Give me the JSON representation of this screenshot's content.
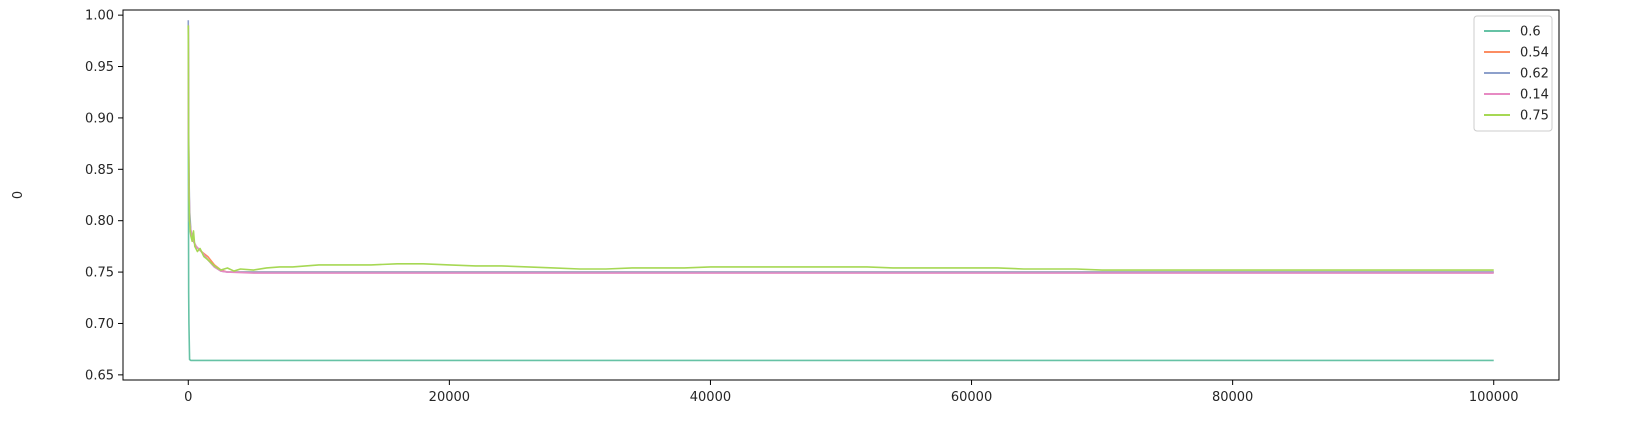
{
  "chart_data": {
    "type": "line",
    "title": "",
    "xlabel": "",
    "ylabel": "0",
    "xlim": [
      -5000,
      105000
    ],
    "ylim": [
      0.645,
      1.005
    ],
    "xticks": [
      0,
      20000,
      40000,
      60000,
      80000,
      100000
    ],
    "xtick_labels": [
      "0",
      "20000",
      "40000",
      "60000",
      "80000",
      "100000"
    ],
    "yticks": [
      0.65,
      0.7,
      0.75,
      0.8,
      0.85,
      0.9,
      0.95,
      1.0
    ],
    "ytick_labels": [
      "0.65",
      "0.70",
      "0.75",
      "0.80",
      "0.85",
      "0.90",
      "0.95",
      "1.00"
    ],
    "grid": false,
    "legend": "top-right",
    "series": [
      {
        "name": "0.6",
        "color": "#66c2a5",
        "x": [
          0,
          5,
          10,
          20,
          30,
          50,
          100,
          200,
          100000
        ],
        "y": [
          0.99,
          0.94,
          0.86,
          0.79,
          0.73,
          0.7,
          0.665,
          0.664,
          0.664
        ]
      },
      {
        "name": "0.54",
        "color": "#fc8d62",
        "x": [
          0,
          20,
          50,
          100,
          200,
          400,
          600,
          1000,
          1500,
          2000,
          2500,
          3000,
          5000,
          10000,
          20000,
          40000,
          60000,
          80000,
          100000
        ],
        "y": [
          0.99,
          0.9,
          0.84,
          0.8,
          0.79,
          0.78,
          0.775,
          0.77,
          0.765,
          0.757,
          0.752,
          0.75,
          0.75,
          0.75,
          0.75,
          0.75,
          0.75,
          0.75,
          0.75
        ]
      },
      {
        "name": "0.62",
        "color": "#8da0cb",
        "x": [
          0,
          20,
          50,
          100,
          200,
          400,
          600,
          1000,
          1500,
          2000,
          2500,
          3000,
          5000,
          10000,
          20000,
          40000,
          60000,
          80000,
          100000
        ],
        "y": [
          0.995,
          0.91,
          0.85,
          0.81,
          0.79,
          0.78,
          0.775,
          0.77,
          0.762,
          0.755,
          0.751,
          0.75,
          0.75,
          0.75,
          0.75,
          0.75,
          0.75,
          0.75,
          0.75
        ]
      },
      {
        "name": "0.14",
        "color": "#e78ac3",
        "x": [
          0,
          20,
          50,
          100,
          200,
          400,
          600,
          1000,
          1500,
          2000,
          2500,
          3000,
          5000,
          10000,
          20000,
          40000,
          60000,
          80000,
          100000
        ],
        "y": [
          0.99,
          0.9,
          0.84,
          0.8,
          0.79,
          0.78,
          0.775,
          0.77,
          0.762,
          0.755,
          0.751,
          0.75,
          0.749,
          0.749,
          0.749,
          0.749,
          0.749,
          0.749,
          0.749
        ]
      },
      {
        "name": "0.75",
        "color": "#a6d854",
        "x": [
          0,
          10,
          20,
          40,
          60,
          100,
          150,
          200,
          300,
          400,
          500,
          700,
          900,
          1200,
          1500,
          2000,
          2500,
          3000,
          3500,
          4000,
          5000,
          6000,
          7000,
          8000,
          9000,
          10000,
          12000,
          14000,
          16000,
          18000,
          20000,
          22000,
          24000,
          26000,
          28000,
          30000,
          32000,
          34000,
          36000,
          38000,
          40000,
          42000,
          44000,
          46000,
          48000,
          50000,
          52000,
          54000,
          56000,
          58000,
          60000,
          62000,
          64000,
          66000,
          68000,
          70000,
          72000,
          74000,
          76000,
          78000,
          80000,
          82000,
          84000,
          86000,
          88000,
          90000,
          92000,
          94000,
          96000,
          98000,
          100000
        ],
        "y": [
          0.99,
          0.95,
          0.91,
          0.85,
          0.82,
          0.8,
          0.79,
          0.785,
          0.78,
          0.79,
          0.775,
          0.77,
          0.773,
          0.765,
          0.762,
          0.756,
          0.752,
          0.754,
          0.751,
          0.753,
          0.752,
          0.754,
          0.755,
          0.755,
          0.756,
          0.757,
          0.757,
          0.757,
          0.758,
          0.758,
          0.757,
          0.756,
          0.756,
          0.755,
          0.754,
          0.753,
          0.753,
          0.754,
          0.754,
          0.754,
          0.755,
          0.755,
          0.755,
          0.755,
          0.755,
          0.755,
          0.755,
          0.754,
          0.754,
          0.754,
          0.754,
          0.754,
          0.753,
          0.753,
          0.753,
          0.752,
          0.752,
          0.752,
          0.752,
          0.752,
          0.752,
          0.752,
          0.752,
          0.752,
          0.752,
          0.752,
          0.752,
          0.752,
          0.752,
          0.752,
          0.752
        ]
      }
    ]
  }
}
